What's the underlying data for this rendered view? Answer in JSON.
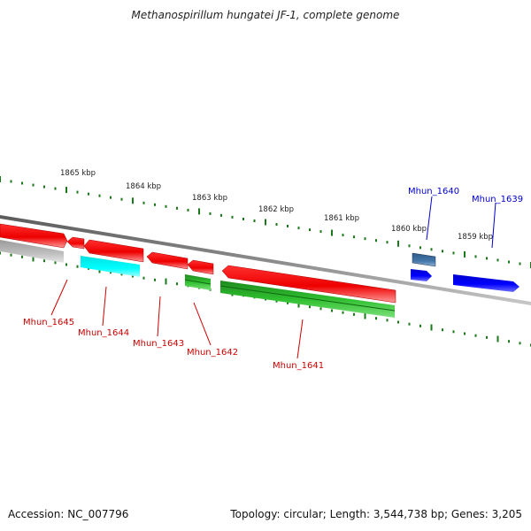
{
  "title": "Methanospirillum hungatei JF-1, complete genome",
  "accession": "Accession: NC_007796",
  "topology": "Topology: circular; Length: 3,544,738 bp; Genes: 3,205",
  "ticks": [
    "1865 kbp",
    "1864 kbp",
    "1863 kbp",
    "1862 kbp",
    "1861 kbp",
    "1860 kbp",
    "1859 kbp"
  ],
  "genes": [
    {
      "name": "Mhun_1645",
      "color": "#cc0000"
    },
    {
      "name": "Mhun_1644",
      "color": "#cc0000"
    },
    {
      "name": "Mhun_1643",
      "color": "#cc0000"
    },
    {
      "name": "Mhun_1642",
      "color": "#cc0000"
    },
    {
      "name": "Mhun_1641",
      "color": "#cc0000"
    },
    {
      "name": "Mhun_1640",
      "color": "#0000cc"
    },
    {
      "name": "Mhun_1639",
      "color": "#0000cc"
    }
  ],
  "colors": {
    "backbone": "#808080",
    "tick": "#1a7a1a",
    "cds_forward": "#ff0000",
    "cds_reverse": "#0000ff",
    "rna": "#22bb22",
    "misc": "#00ffff",
    "pseudo": "#b0b0b0",
    "steelblue": "#4477aa"
  }
}
